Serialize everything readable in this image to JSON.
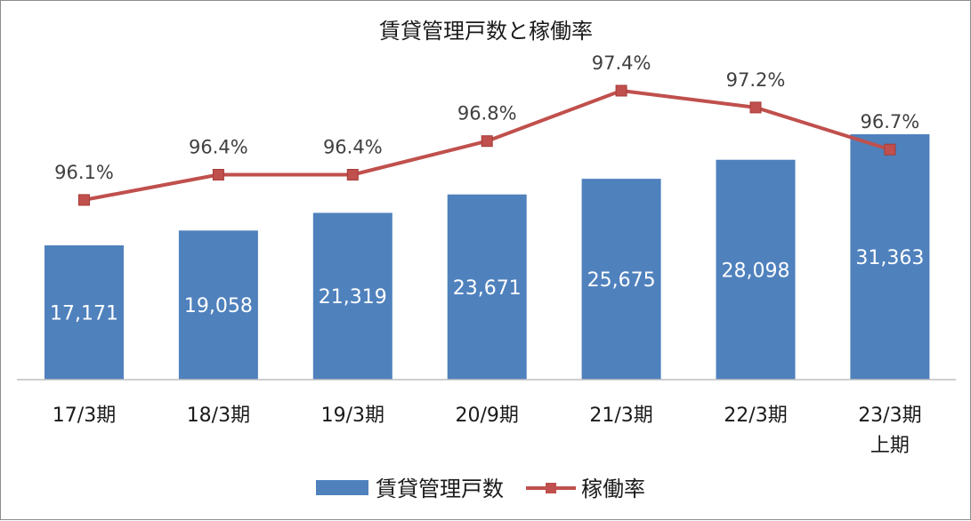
{
  "chart_data": {
    "type": "bar",
    "title": "賃貸管理戸数と稼働率",
    "categories": [
      [
        "17/3期"
      ],
      [
        "18/3期"
      ],
      [
        "19/3期"
      ],
      [
        "20/9期"
      ],
      [
        "21/3期"
      ],
      [
        "22/3期"
      ],
      [
        "23/3期",
        "上期"
      ]
    ],
    "series": [
      {
        "name": "賃貸管理戸数",
        "type": "bar",
        "color": "#4f81bd",
        "values": [
          17171,
          19058,
          21319,
          23671,
          25675,
          28098,
          31363
        ],
        "labels": [
          "17,171",
          "19,058",
          "21,319",
          "23,671",
          "25,675",
          "28,098",
          "31,363"
        ]
      },
      {
        "name": "稼働率",
        "type": "line",
        "color": "#c0504d",
        "values": [
          96.1,
          96.4,
          96.4,
          96.8,
          97.4,
          97.2,
          96.7
        ],
        "labels": [
          "96.1%",
          "96.4%",
          "96.4%",
          "96.8%",
          "97.4%",
          "97.2%",
          "96.7%"
        ]
      }
    ],
    "legend_position": "bottom",
    "grid": false
  }
}
